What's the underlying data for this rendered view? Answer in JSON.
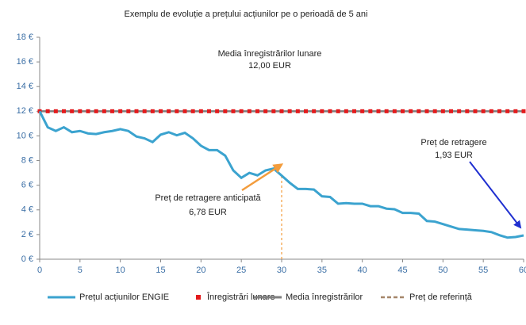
{
  "chart_data": {
    "type": "line",
    "title": "Exemplu de evoluție a prețului acțiunilor pe o perioadă de 5 ani",
    "x": [
      0,
      1,
      2,
      3,
      4,
      5,
      6,
      7,
      8,
      9,
      10,
      11,
      12,
      13,
      14,
      15,
      16,
      17,
      18,
      19,
      20,
      21,
      22,
      23,
      24,
      25,
      26,
      27,
      28,
      29,
      30,
      31,
      32,
      33,
      34,
      35,
      36,
      37,
      38,
      39,
      40,
      41,
      42,
      43,
      44,
      45,
      46,
      47,
      48,
      49,
      50,
      51,
      52,
      53,
      54,
      55,
      56,
      57,
      58,
      59,
      60
    ],
    "series": [
      {
        "name": "Media înregistrărilor",
        "color": "#7f7f7f",
        "kind": "line",
        "values": [
          12,
          12,
          12,
          12,
          12,
          12,
          12,
          12,
          12,
          12,
          12,
          12,
          12,
          12,
          12,
          12,
          12,
          12,
          12,
          12,
          12,
          12,
          12,
          12,
          12,
          12,
          12,
          12,
          12,
          12,
          12,
          12,
          12,
          12,
          12,
          12,
          12,
          12,
          12,
          12,
          12,
          12,
          12,
          12,
          12,
          12,
          12,
          12,
          12,
          12,
          12,
          12,
          12,
          12,
          12,
          12,
          12,
          12,
          12,
          12,
          12
        ]
      },
      {
        "name": "Înregistrări lunare",
        "color": "#e31a1c",
        "kind": "marker",
        "values": [
          12,
          12,
          12,
          12,
          12,
          12,
          12,
          12,
          12,
          12,
          12,
          12,
          12,
          12,
          12,
          12,
          12,
          12,
          12,
          12,
          12,
          12,
          12,
          12,
          12,
          12,
          12,
          12,
          12,
          12,
          12,
          12,
          12,
          12,
          12,
          12,
          12,
          12,
          12,
          12,
          12,
          12,
          12,
          12,
          12,
          12,
          12,
          12,
          12,
          12,
          12,
          12,
          12,
          12,
          12,
          12,
          12,
          12,
          12,
          12,
          12
        ]
      },
      {
        "name": "Prețul acțiunilor ENGIE",
        "color": "#3ba3cf",
        "kind": "line",
        "values": [
          12,
          10.7,
          10.4,
          10.7,
          10.3,
          10.4,
          10.2,
          10.15,
          10.3,
          10.4,
          10.55,
          10.4,
          9.95,
          9.8,
          9.5,
          10.1,
          10.3,
          10.05,
          10.25,
          9.8,
          9.2,
          8.85,
          8.85,
          8.4,
          7.2,
          6.6,
          7.0,
          6.8,
          7.2,
          7.35,
          6.78,
          6.2,
          5.7,
          5.7,
          5.65,
          5.1,
          5.05,
          4.5,
          4.55,
          4.5,
          4.5,
          4.3,
          4.3,
          4.1,
          4.05,
          3.75,
          3.75,
          3.7,
          3.1,
          3.05,
          2.85,
          2.65,
          2.45,
          2.4,
          2.35,
          2.3,
          2.2,
          1.95,
          1.75,
          1.8,
          1.93
        ]
      }
    ],
    "reference": {
      "name": "Preț de referință",
      "color": "#a5866a",
      "x": 30
    },
    "annotations": [
      {
        "title": "Media înregistrărilor lunare",
        "text": "12,00 EUR"
      },
      {
        "title": "Preț de retragere anticipată",
        "text": "6,78 EUR"
      },
      {
        "title": "Preț de retragere",
        "text": "1,93 EUR"
      }
    ],
    "xlim": [
      0,
      60
    ],
    "xticks": [
      0,
      5,
      10,
      15,
      20,
      25,
      30,
      35,
      40,
      45,
      50,
      55,
      60
    ],
    "ylim": [
      0,
      18
    ],
    "yticks": [
      {
        "value": 0,
        "label": "0 €"
      },
      {
        "value": 2,
        "label": "2 €"
      },
      {
        "value": 4,
        "label": "4 €"
      },
      {
        "value": 6,
        "label": "6 €"
      },
      {
        "value": 8,
        "label": "8 €"
      },
      {
        "value": 10,
        "label": "10 €"
      },
      {
        "value": 12,
        "label": "12 €"
      },
      {
        "value": 14,
        "label": "14 €"
      },
      {
        "value": 16,
        "label": "16 €"
      },
      {
        "value": 18,
        "label": "18 €"
      }
    ],
    "grid": false
  }
}
